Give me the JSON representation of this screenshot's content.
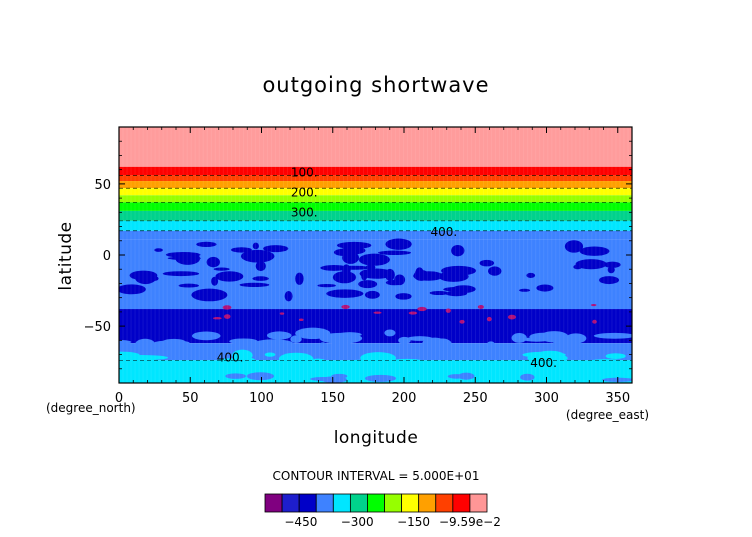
{
  "chart_data": {
    "type": "heatmap",
    "title": "outgoing shortwave",
    "xlabel": "longitude",
    "ylabel": "latitude",
    "xunit": "(degree_east)",
    "yunit": "(degree_north)",
    "xlim": [
      0,
      360
    ],
    "ylim": [
      -90,
      90
    ],
    "xticks": [
      0,
      50,
      100,
      150,
      200,
      250,
      300,
      350
    ],
    "yticks": [
      -50,
      0,
      50
    ],
    "grid": false,
    "contour_interval_text": "CONTOUR INTERVAL = 5.000E+01",
    "levels": [
      -500,
      -450,
      -400,
      -350,
      -300,
      -250,
      -200,
      -150,
      -100,
      -50,
      0
    ],
    "colors": [
      "#800080",
      "#1e1ecd",
      "#0000c8",
      "#3e82ff",
      "#00e6ff",
      "#00d28c",
      "#00ff00",
      "#96ff00",
      "#ffff00",
      "#ffa000",
      "#ff4000",
      "#ff0000",
      "#ff9696"
    ],
    "colorbar_labels": [
      {
        "text": "−450",
        "value": -450
      },
      {
        "text": "−300",
        "value": -300
      },
      {
        "text": "−150",
        "value": -150
      },
      {
        "text": "−9.59e−2",
        "value": 0
      }
    ],
    "contour_labels": [
      {
        "text": "100.",
        "lon": 130,
        "lat": 58
      },
      {
        "text": "200.",
        "lon": 130,
        "lat": 44
      },
      {
        "text": "300.",
        "lon": 130,
        "lat": 30
      },
      {
        "text": "400.",
        "lon": 228,
        "lat": 16
      },
      {
        "text": "400.",
        "lon": 78,
        "lat": -72
      },
      {
        "text": "400.",
        "lon": 298,
        "lat": -76
      }
    ],
    "bands": [
      {
        "lat_min": 62,
        "lat_max": 90,
        "color": "#ff9c9c"
      },
      {
        "lat_min": 56,
        "lat_max": 62,
        "color": "#ff0000"
      },
      {
        "lat_min": 52,
        "lat_max": 56,
        "color": "#ff4000"
      },
      {
        "lat_min": 47,
        "lat_max": 52,
        "color": "#ffa000"
      },
      {
        "lat_min": 42,
        "lat_max": 47,
        "color": "#ffff00"
      },
      {
        "lat_min": 37,
        "lat_max": 42,
        "color": "#96ff00"
      },
      {
        "lat_min": 31,
        "lat_max": 37,
        "color": "#00ff00"
      },
      {
        "lat_min": 24,
        "lat_max": 31,
        "color": "#00d28c"
      },
      {
        "lat_min": 17,
        "lat_max": 24,
        "color": "#00e6ff"
      },
      {
        "lat_min": 11,
        "lat_max": 17,
        "color": "#3e82ff"
      },
      {
        "lat_min": -38,
        "lat_max": 11,
        "color": "#3e82ff"
      },
      {
        "lat_min": -62,
        "lat_max": -38,
        "color": "#0000c8"
      },
      {
        "lat_min": -74,
        "lat_max": -62,
        "color": "#3e82ff"
      },
      {
        "lat_min": -90,
        "lat_max": -74,
        "color": "#00e6ff"
      }
    ]
  }
}
